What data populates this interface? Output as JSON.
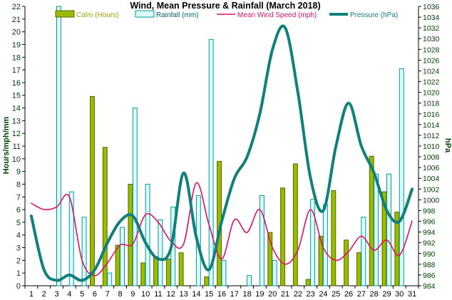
{
  "chart_data": {
    "type": "bar",
    "title": "Wind, Mean Pressure & Rainfall (March 2018)",
    "ylabel": "Hours/mph/mm",
    "y2label": "hPa",
    "ylim": [
      0,
      22
    ],
    "y2lim": [
      984,
      1036
    ],
    "categories": [
      "1",
      "2",
      "3",
      "4",
      "5",
      "6",
      "7",
      "8",
      "9",
      "10",
      "11",
      "12",
      "13",
      "14",
      "15",
      "16",
      "17",
      "18",
      "19",
      "20",
      "21",
      "22",
      "23",
      "24",
      "25",
      "26",
      "27",
      "28",
      "29",
      "30",
      "31"
    ],
    "y_ticks": [
      "0",
      "1",
      "2",
      "3",
      "4",
      "5",
      "6",
      "7",
      "8",
      "9",
      "10",
      "11",
      "12",
      "13",
      "14",
      "15",
      "16",
      "17",
      "18",
      "19",
      "20",
      "21",
      "22"
    ],
    "y2_ticks": [
      "984",
      "986",
      "988",
      "990",
      "992",
      "994",
      "996",
      "998",
      "1000",
      "1002",
      "1004",
      "1006",
      "1008",
      "1010",
      "1012",
      "1014",
      "1016",
      "1018",
      "1020",
      "1022",
      "1024",
      "1026",
      "1028",
      "1030",
      "1032",
      "1034",
      "1036"
    ],
    "legend_position": "top",
    "series": [
      {
        "name": "Calm (Hours)",
        "kind": "bar",
        "axis": "left",
        "color": "#99bb00",
        "stroke": "#556600",
        "values": [
          0,
          0,
          0,
          0,
          0,
          14.9,
          10.9,
          3.2,
          8.0,
          1.8,
          2.3,
          2.1,
          2.6,
          0,
          0.7,
          9.8,
          0,
          0,
          0,
          4.2,
          7.7,
          9.6,
          0.5,
          3.9,
          7.5,
          3.6,
          2.6,
          10.2,
          7.4,
          5.8,
          0
        ]
      },
      {
        "name": "Rainfall (mm)",
        "kind": "bar",
        "axis": "left",
        "color": "#ddfdfd",
        "stroke": "#009999",
        "values": [
          0,
          0,
          22,
          7.4,
          5.4,
          0,
          1.0,
          4.6,
          14.0,
          8.0,
          5.2,
          6.2,
          0,
          7.1,
          19.4,
          2.0,
          0,
          0.8,
          7.1,
          2.0,
          0,
          0,
          6.8,
          6.4,
          0,
          0,
          5.4,
          8.8,
          8.8,
          17.1,
          0
        ]
      },
      {
        "name": "Mean Wind Speed (mph)",
        "kind": "line",
        "axis": "left",
        "color": "#dd1166",
        "values": [
          6.5,
          6.0,
          6.2,
          7.0,
          2.0,
          0.8,
          1.8,
          3.2,
          3.3,
          5.6,
          5.0,
          3.5,
          3.3,
          8.1,
          4.8,
          2.1,
          5.2,
          4.2,
          6.0,
          3.0,
          1.7,
          2.8,
          6.0,
          3.0,
          2.0,
          2.7,
          3.9,
          2.8,
          3.6,
          2.4,
          5.1
        ]
      },
      {
        "name": "Pressure (hPa)",
        "kind": "line",
        "axis": "right",
        "color": "#11807b",
        "values": [
          997,
          987,
          985,
          986,
          985,
          987,
          992,
          996,
          997,
          992,
          989,
          991,
          1005,
          993,
          987,
          996,
          1004,
          1008,
          1016,
          1028,
          1032,
          1020,
          1004,
          998,
          1010,
          1018,
          1010,
          1005,
          998,
          996,
          1002
        ]
      }
    ]
  }
}
